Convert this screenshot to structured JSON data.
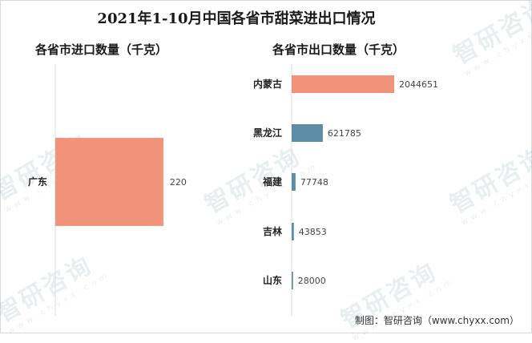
{
  "title": "2021年1-10月中国各省市甜菜进出口情况",
  "footer": "制图：智研咨询（www.chyxx.com）",
  "watermark": {
    "text": "智研咨询",
    "url": "www.chyxx.com"
  },
  "colors": {
    "import_bar": "#f0937a",
    "export_first": "#f0937a",
    "export_others": "#5b8ea6",
    "axis": "#dddddd"
  },
  "chart_data": [
    {
      "type": "bar",
      "orientation": "horizontal",
      "title": "各省市进口数量（千克）",
      "categories": [
        "广东"
      ],
      "values": [
        220
      ],
      "xlim": [
        0,
        300
      ],
      "grid": false,
      "legend": "none"
    },
    {
      "type": "bar",
      "orientation": "horizontal",
      "title": "各省市出口数量（千克）",
      "categories": [
        "内蒙古",
        "黑龙江",
        "福建",
        "吉林",
        "山东"
      ],
      "values": [
        2044651,
        621785,
        77748,
        43853,
        28000
      ],
      "xlim": [
        0,
        2044651
      ],
      "grid": false,
      "legend": "none"
    }
  ]
}
